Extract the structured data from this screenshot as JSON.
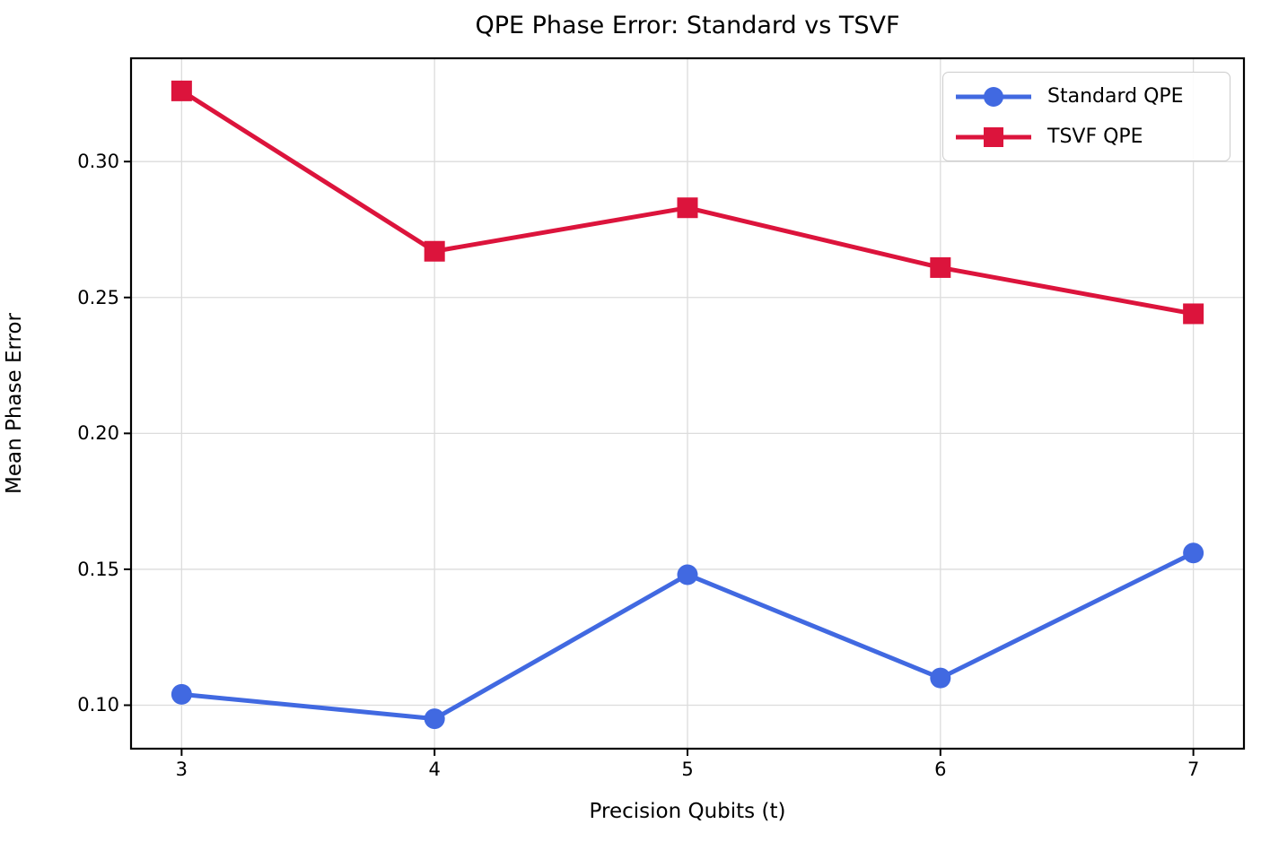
{
  "chart_data": {
    "type": "line",
    "title": "QPE Phase Error: Standard vs TSVF",
    "xlabel": "Precision Qubits (t)",
    "ylabel": "Mean Phase Error",
    "x": [
      3,
      4,
      5,
      6,
      7
    ],
    "series": [
      {
        "name": "Standard QPE",
        "color": "#4169E1",
        "marker": "circle",
        "values": [
          0.104,
          0.095,
          0.148,
          0.11,
          0.156
        ]
      },
      {
        "name": "TSVF QPE",
        "color": "#DC143C",
        "marker": "square",
        "values": [
          0.326,
          0.267,
          0.283,
          0.261,
          0.244
        ]
      }
    ],
    "xticks": {
      "values": [
        3,
        4,
        5,
        6,
        7
      ],
      "labels": [
        "3",
        "4",
        "5",
        "6",
        "7"
      ]
    },
    "yticks": {
      "values": [
        0.1,
        0.15,
        0.2,
        0.25,
        0.3
      ],
      "labels": [
        "0.10",
        "0.15",
        "0.20",
        "0.25",
        "0.30"
      ]
    },
    "xlim": [
      2.8,
      7.2
    ],
    "ylim": [
      0.084,
      0.338
    ],
    "grid": true,
    "legend_position": "upper right",
    "colors": {
      "grid": "#dcdcdc",
      "axis": "#000000",
      "background": "#ffffff",
      "legend_border": "#cccccc"
    }
  }
}
